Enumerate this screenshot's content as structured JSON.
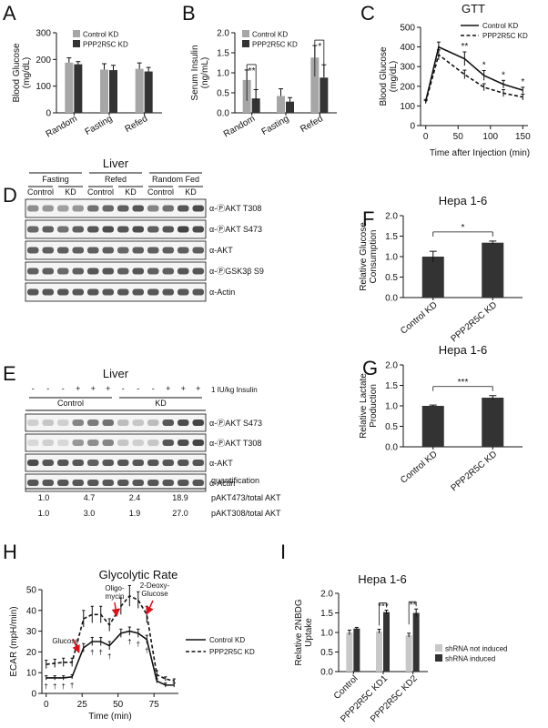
{
  "colors": {
    "control": "#a6a6a6",
    "kd": "#333333",
    "axis": "#111111",
    "blot_bg": "#f4f4f4",
    "band": "#3a3a3a",
    "arrow": "#e0101a"
  },
  "panels": {
    "A": {
      "letter": "A"
    },
    "B": {
      "letter": "B"
    },
    "C": {
      "letter": "C"
    },
    "D": {
      "letter": "D"
    },
    "E": {
      "letter": "E"
    },
    "F": {
      "letter": "F"
    },
    "G": {
      "letter": "G"
    },
    "H": {
      "letter": "H"
    },
    "I": {
      "letter": "I"
    }
  },
  "chart_data": [
    {
      "id": "A",
      "type": "bar",
      "ylabel": "Blood Glucose (mg/dL)",
      "ylim": [
        0,
        300
      ],
      "yticks": [
        0,
        100,
        200,
        300
      ],
      "categories": [
        "Random",
        "Fasting",
        "Refed"
      ],
      "series": [
        {
          "name": "Control KD",
          "values": [
            188,
            162,
            165
          ],
          "err": [
            18,
            22,
            22
          ]
        },
        {
          "name": "PPP2R5C KD",
          "values": [
            182,
            160,
            155
          ],
          "err": [
            10,
            18,
            15
          ]
        }
      ],
      "legend": "top-right"
    },
    {
      "id": "B",
      "type": "bar",
      "ylabel": "Serum Insulin (ng/mL)",
      "ylim": [
        0,
        2.0
      ],
      "yticks": [
        0.0,
        0.5,
        1.0,
        1.5,
        2.0
      ],
      "categories": [
        "Random",
        "Fasting",
        "Refed"
      ],
      "series": [
        {
          "name": "Control KD",
          "values": [
            0.82,
            0.42,
            1.38
          ],
          "err": [
            0.25,
            0.18,
            0.3
          ]
        },
        {
          "name": "PPP2R5C KD",
          "values": [
            0.36,
            0.28,
            0.88
          ],
          "err": [
            0.22,
            0.1,
            0.32
          ]
        }
      ],
      "sig": [
        {
          "cat": 0,
          "label": "**"
        },
        {
          "cat": 2,
          "label": "*"
        }
      ],
      "legend": "top-right"
    },
    {
      "id": "C",
      "type": "line",
      "title": "GTT",
      "xlabel": "Time after Injection (min)",
      "ylabel": "Blood Glucose (mg/dL)",
      "xlim": [
        -8,
        158
      ],
      "xticks": [
        0,
        50,
        100,
        150
      ],
      "ylim": [
        0,
        500
      ],
      "yticks": [
        0,
        100,
        200,
        300,
        400,
        500
      ],
      "x": [
        0,
        20,
        60,
        90,
        120,
        150
      ],
      "series": [
        {
          "name": "Control KD",
          "style": "solid",
          "values": [
            125,
            400,
            340,
            255,
            210,
            180
          ],
          "err": [
            8,
            25,
            35,
            25,
            20,
            15
          ]
        },
        {
          "name": "PPP2R5C KD",
          "style": "dashed",
          "values": [
            120,
            360,
            260,
            195,
            165,
            145
          ],
          "err": [
            8,
            25,
            22,
            18,
            18,
            15
          ]
        }
      ],
      "sig": [
        {
          "x": 60,
          "label": "**"
        },
        {
          "x": 90,
          "label": "*"
        },
        {
          "x": 120,
          "label": "*"
        },
        {
          "x": 150,
          "label": "*"
        }
      ],
      "legend": "top-right"
    },
    {
      "id": "F",
      "type": "bar",
      "title": "Hepa 1-6",
      "ylabel": "Relative Glucose Consumption",
      "ylim": [
        0,
        2.0
      ],
      "yticks": [
        0.0,
        0.5,
        1.0,
        1.5,
        2.0
      ],
      "categories": [
        "Control KD",
        "PPP2R5C KD"
      ],
      "values": [
        1.0,
        1.34
      ],
      "err": [
        0.13,
        0.04
      ],
      "sig": [
        {
          "label": "*"
        }
      ]
    },
    {
      "id": "G",
      "type": "bar",
      "title": "Hepa 1-6",
      "ylabel": "Relative Lactate Production",
      "ylim": [
        0,
        2.0
      ],
      "yticks": [
        0.0,
        0.5,
        1.0,
        1.5,
        2.0
      ],
      "categories": [
        "Control KD",
        "PPP2R5C KD"
      ],
      "values": [
        1.0,
        1.2
      ],
      "err": [
        0.02,
        0.05
      ],
      "sig": [
        {
          "label": "***"
        }
      ]
    },
    {
      "id": "H",
      "type": "line",
      "title": "Glycolytic Rate",
      "xlabel": "Time (min)",
      "ylabel": "ECAR (mpH/min)",
      "xlim": [
        -3,
        92
      ],
      "xticks": [
        0,
        25,
        50,
        75
      ],
      "ylim": [
        0,
        50
      ],
      "yticks": [
        0,
        10,
        20,
        30,
        40,
        50
      ],
      "x": [
        0,
        6,
        12,
        18,
        26,
        32,
        38,
        44,
        52,
        58,
        64,
        70,
        77,
        83,
        89
      ],
      "series": [
        {
          "name": "Control KD",
          "style": "solid",
          "values": [
            7.5,
            7.5,
            7.5,
            8,
            22,
            25,
            25,
            23,
            29,
            30,
            29,
            26,
            6,
            4,
            4
          ],
          "err": [
            1,
            1,
            1,
            1,
            2,
            2,
            2,
            2,
            2,
            2,
            2,
            2,
            1,
            1,
            1
          ]
        },
        {
          "name": "PPP2R5C KD",
          "style": "dashed",
          "values": [
            14,
            14.5,
            15,
            15,
            36,
            38,
            38,
            33,
            42,
            47,
            45,
            38,
            9,
            7,
            6
          ],
          "err": [
            2,
            2,
            2,
            2,
            4,
            4,
            4,
            3,
            4,
            5,
            4,
            4,
            2,
            1,
            1
          ]
        }
      ],
      "daggers": [
        0,
        6,
        12,
        18,
        32,
        38,
        44,
        58,
        64,
        70
      ],
      "annotations": [
        {
          "label": "Glucose",
          "x": 19,
          "y": 19
        },
        {
          "label": "Oligo-mycin",
          "x": 44,
          "y": 37
        },
        {
          "label": "2-Deoxy-Glucose",
          "x": 65,
          "y": 38
        }
      ],
      "legend": "right"
    },
    {
      "id": "I",
      "type": "bar",
      "title": "Hepa 1-6",
      "ylabel": "Relative 2NBDG Uptake",
      "ylim": [
        0,
        2.0
      ],
      "yticks": [
        0.0,
        0.5,
        1.0,
        1.5,
        2.0
      ],
      "categories": [
        "Control",
        "PPP2R5C KD1",
        "PPP2R5C KD2"
      ],
      "series": [
        {
          "name": "shRNA not induced",
          "values": [
            1.0,
            1.03,
            0.93
          ],
          "err": [
            0.06,
            0.05,
            0.05
          ]
        },
        {
          "name": "shRNA induced",
          "values": [
            1.1,
            1.52,
            1.5
          ],
          "err": [
            0.03,
            0.05,
            0.1
          ]
        }
      ],
      "sig": [
        {
          "cat": 1,
          "label": "***"
        },
        {
          "cat": 2,
          "label": "**"
        }
      ],
      "legend": "right"
    }
  ],
  "blots": {
    "D": {
      "title": "Liver",
      "groups": [
        "Fasting",
        "Refed",
        "Random Fed"
      ],
      "subgroups": [
        "Control",
        "KD",
        "Control",
        "KD",
        "Control",
        "KD"
      ],
      "rows": [
        "α-ⓅAKT T308",
        "α-ⓅAKT S473",
        "α-AKT",
        "α-ⓅGSK3β S9",
        "α-Actin"
      ]
    },
    "E": {
      "title": "Liver",
      "insulin_signs": [
        "-",
        "-",
        "-",
        "+",
        "+",
        "+",
        "-",
        "-",
        "-",
        "+",
        "+",
        "+"
      ],
      "insulin_label": "1 IU/kg Insulin",
      "groups": [
        "Control",
        "KD"
      ],
      "rows": [
        "α-ⓅAKT S473",
        "α-ⓅAKT T308",
        "α-AKT",
        "α-Actin"
      ],
      "quant_label": "quantification",
      "quant_rows": [
        {
          "values": [
            "1.0",
            "4.7",
            "2.4",
            "18.9"
          ],
          "label": "pAKT473/total AKT"
        },
        {
          "values": [
            "1.0",
            "3.0",
            "1.9",
            "27.0"
          ],
          "label": "pAKT308/total AKT"
        }
      ]
    }
  }
}
